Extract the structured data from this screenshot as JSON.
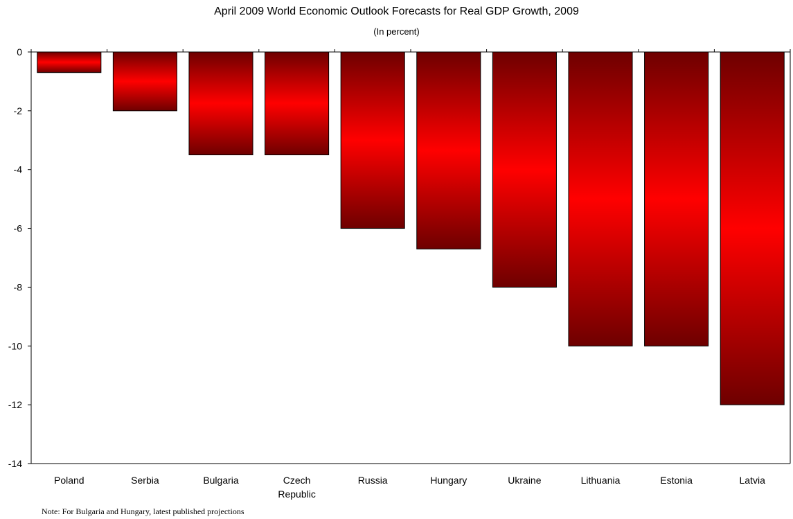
{
  "chart_data": {
    "type": "bar",
    "title": "April 2009 World Economic Outlook Forecasts for Real GDP Growth, 2009",
    "subtitle": "(In percent)",
    "categories": [
      "Poland",
      "Serbia",
      "Bulgaria",
      "Czech Republic",
      "Russia",
      "Hungary",
      "Ukraine",
      "Lithuania",
      "Estonia",
      "Latvia"
    ],
    "category_labels": [
      [
        "Poland"
      ],
      [
        "Serbia"
      ],
      [
        "Bulgaria"
      ],
      [
        "Czech",
        "Republic"
      ],
      [
        "Russia"
      ],
      [
        "Hungary"
      ],
      [
        "Ukraine"
      ],
      [
        "Lithuania"
      ],
      [
        "Estonia"
      ],
      [
        "Latvia"
      ]
    ],
    "values": [
      -0.7,
      -2.0,
      -3.5,
      -3.5,
      -6.0,
      -6.7,
      -8.0,
      -10.0,
      -10.0,
      -12.0
    ],
    "ylim": [
      -14,
      0
    ],
    "yticks": [
      0,
      -2,
      -4,
      -6,
      -8,
      -10,
      -12,
      -14
    ],
    "xlabel": "",
    "ylabel": "",
    "grid": false,
    "bar_colors": {
      "center": "#ff0000",
      "edge": "#6e0000"
    }
  },
  "note": "Note: For Bulgaria and Hungary, latest published projections"
}
